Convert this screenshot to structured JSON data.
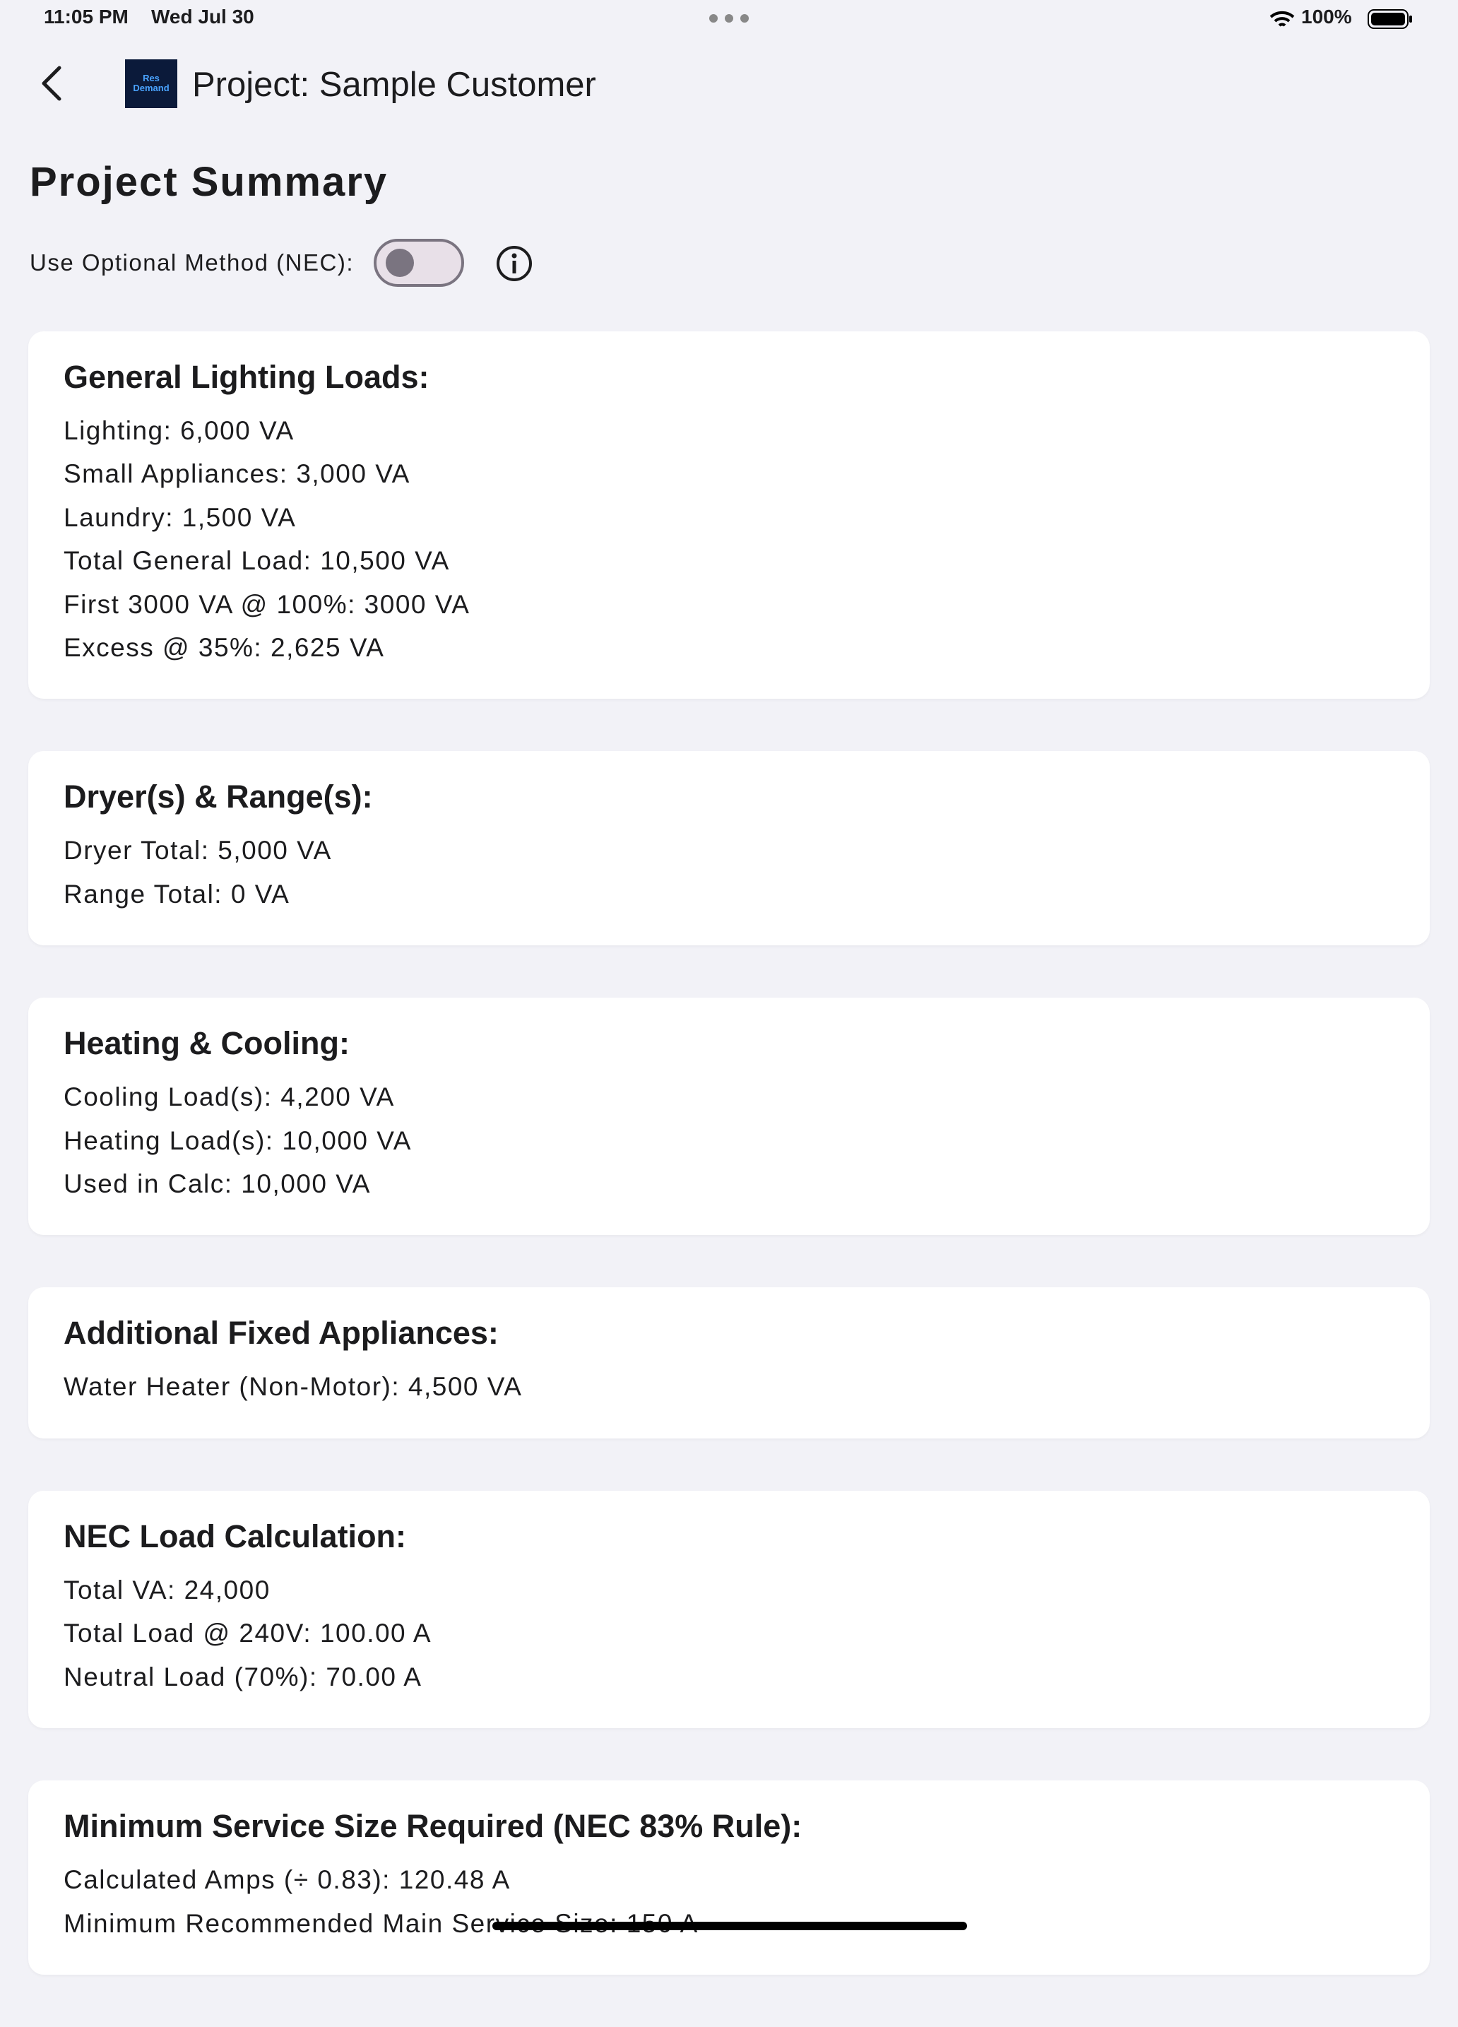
{
  "status_bar": {
    "time": "11:05 PM",
    "date": "Wed Jul 30",
    "battery": "100%"
  },
  "header": {
    "logo": [
      "Res",
      "Demand"
    ],
    "title": "Project: Sample Customer"
  },
  "page_title": "Project Summary",
  "toggle_label": "Use Optional Method (NEC):",
  "cards": [
    {
      "title": "General Lighting Loads:",
      "lines": [
        "Lighting: 6,000 VA",
        "Small Appliances: 3,000 VA",
        "Laundry: 1,500 VA",
        "Total General Load: 10,500 VA",
        "First 3000 VA @ 100%: 3000 VA",
        "Excess @ 35%: 2,625 VA"
      ]
    },
    {
      "title": "Dryer(s) & Range(s):",
      "lines": [
        "Dryer Total: 5,000 VA",
        "Range Total: 0 VA"
      ]
    },
    {
      "title": "Heating & Cooling:",
      "lines": [
        "Cooling Load(s): 4,200 VA",
        "Heating Load(s): 10,000 VA",
        "Used in Calc: 10,000 VA"
      ]
    },
    {
      "title": "Additional Fixed Appliances:",
      "lines": [
        "Water Heater (Non-Motor): 4,500 VA"
      ]
    },
    {
      "title": "NEC Load Calculation:",
      "lines": [
        "Total VA: 24,000",
        "Total Load @ 240V: 100.00 A",
        "Neutral Load (70%): 70.00 A"
      ]
    },
    {
      "title": "Minimum Service Size Required (NEC 83% Rule):",
      "lines": [
        "Calculated Amps (÷ 0.83): 120.48 A",
        "Minimum Recommended Main Service Size: 150 A"
      ]
    }
  ]
}
